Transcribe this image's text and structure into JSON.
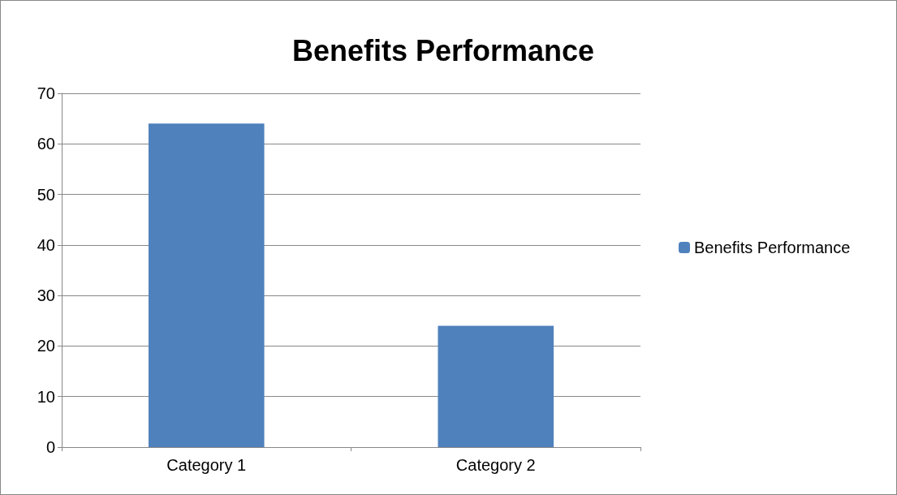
{
  "chart_data": {
    "type": "bar",
    "title": "Benefits Performance",
    "categories": [
      "Category 1",
      "Category 2"
    ],
    "series": [
      {
        "name": "Benefits Performance",
        "color": "#4f81bd",
        "values": [
          64,
          24
        ]
      }
    ],
    "ylim": [
      0,
      70
    ],
    "yticks": [
      0,
      10,
      20,
      30,
      40,
      50,
      60,
      70
    ],
    "grid": "y",
    "legend": "right"
  }
}
